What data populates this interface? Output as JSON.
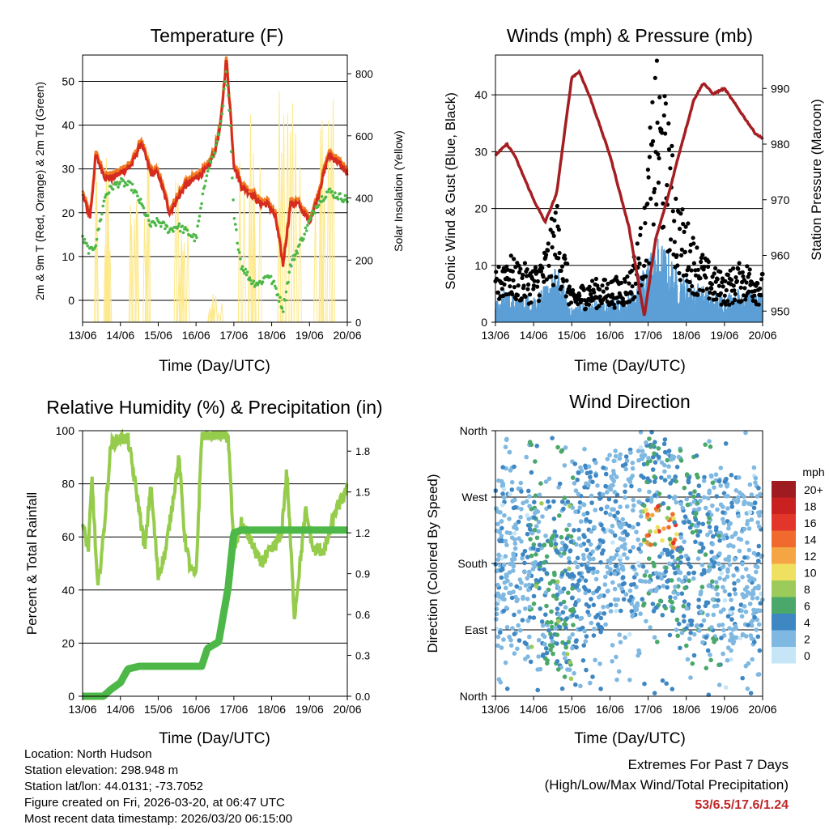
{
  "colors": {
    "red": "#d62b1f",
    "orange": "#f07c22",
    "green": "#4db848",
    "yellow": "#fde98b",
    "black": "#000000",
    "blue": "#5b9fd6",
    "maroon": "#a51e22",
    "rh": "#96cc4b",
    "precip": "#4db848"
  },
  "x_ticks": [
    "13/06",
    "14/06",
    "15/06",
    "16/06",
    "17/06",
    "18/06",
    "19/06",
    "20/06"
  ],
  "x_label": "Time (Day/UTC)",
  "panels": {
    "temperature": {
      "title": "Temperature (F)",
      "ylabel_left": "2m & 9m T (Red, Orange) & 2m Td (Green)",
      "ylabel_right": "Solar Insolation (Yellow)",
      "y_ticks": [
        "0",
        "10",
        "20",
        "30",
        "40",
        "50"
      ],
      "y2_ticks": [
        "0",
        "200",
        "400",
        "600",
        "800"
      ]
    },
    "winds": {
      "title": "Winds (mph) & Pressure (mb)",
      "ylabel_left": "Sonic Wind & Gust (Blue, Black)",
      "ylabel_right": "Station Pressure (Maroon)",
      "y_ticks": [
        "0",
        "10",
        "20",
        "30",
        "40"
      ],
      "y2_ticks": [
        "950",
        "960",
        "970",
        "980",
        "990"
      ]
    },
    "humidity": {
      "title": "Relative Humidity (%) & Precipitation (in)",
      "ylabel_left": "Percent & Total Rainfall",
      "y_ticks": [
        "0",
        "20",
        "40",
        "60",
        "80",
        "100"
      ],
      "y2_ticks": [
        "0.0",
        "0.3",
        "0.6",
        "0.9",
        "1.2",
        "1.5",
        "1.8"
      ]
    },
    "direction": {
      "title": "Wind Direction",
      "ylabel_left": "Direction (Colored By Speed)",
      "y_ticks": [
        "North",
        "East",
        "South",
        "West",
        "North"
      ],
      "legend_title": "mph",
      "legend_labels": [
        "20+",
        "18",
        "16",
        "14",
        "12",
        "10",
        "8",
        "6",
        "4",
        "2",
        "0"
      ],
      "legend_colors": [
        "#9e1b1f",
        "#c8211f",
        "#e3362a",
        "#ef6a2c",
        "#f6a545",
        "#f0e060",
        "#9ccb5b",
        "#4aa86a",
        "#3f87c3",
        "#7fb8e1",
        "#c6e6f7"
      ]
    }
  },
  "chart_data": [
    {
      "type": "line",
      "title": "Temperature (F)",
      "xlabel": "Time (Day/UTC)",
      "ylabel": "2m & 9m T (Red, Orange) & 2m Td (Green)",
      "ylim": [
        -5,
        56
      ],
      "y2label": "Solar Insolation (Yellow)",
      "y2lim": [
        0,
        860
      ],
      "x": [
        13.0,
        13.2,
        13.35,
        13.6,
        13.8,
        14.0,
        14.3,
        14.55,
        14.8,
        15.0,
        15.3,
        15.5,
        15.7,
        16.0,
        16.3,
        16.5,
        16.65,
        16.8,
        16.9,
        17.0,
        17.2,
        17.5,
        17.7,
        17.9,
        18.1,
        18.3,
        18.5,
        18.7,
        19.0,
        19.2,
        19.5,
        19.7,
        20.0
      ],
      "series": [
        {
          "name": "2m T",
          "values": [
            24,
            19,
            33,
            28,
            28,
            29,
            31,
            36,
            29,
            29,
            20,
            23,
            26,
            28,
            30,
            34,
            40,
            55,
            44,
            31,
            26,
            24,
            22,
            22,
            19,
            8,
            22,
            22,
            18,
            23,
            33,
            32,
            29
          ]
        },
        {
          "name": "2m Td",
          "values": [
            14,
            11,
            13,
            24,
            26,
            27,
            26,
            22,
            17,
            18,
            16,
            17,
            16,
            14,
            30,
            34,
            40,
            52,
            40,
            19,
            8,
            4,
            4,
            6,
            3,
            -2,
            8,
            12,
            18,
            22,
            25,
            24,
            23
          ]
        },
        {
          "name": "Solar Insolation",
          "peaks": [
            {
              "day": 13.55,
              "value": 530
            },
            {
              "day": 14.5,
              "value": 600
            },
            {
              "day": 15.5,
              "value": 500
            },
            {
              "day": 16.5,
              "value": 95
            },
            {
              "day": 17.45,
              "value": 690
            },
            {
              "day": 18.45,
              "value": 780
            },
            {
              "day": 19.45,
              "value": 720
            }
          ]
        }
      ]
    },
    {
      "type": "line",
      "title": "Winds (mph) & Pressure (mb)",
      "xlabel": "Time (Day/UTC)",
      "ylabel": "Sonic Wind & Gust (Blue, Black)",
      "ylim": [
        0,
        47
      ],
      "y2label": "Station Pressure (Maroon)",
      "y2lim": [
        948,
        996
      ],
      "x": [
        13.0,
        13.3,
        13.5,
        14.0,
        14.3,
        14.6,
        15.0,
        15.2,
        15.5,
        16.0,
        16.5,
        16.9,
        17.2,
        17.5,
        17.8,
        18.2,
        18.45,
        18.7,
        19.0,
        19.5,
        19.8,
        20.0
      ],
      "series": [
        {
          "name": "Station Pressure",
          "values": [
            978,
            980,
            978,
            970,
            966,
            971,
            992,
            993,
            988,
            978,
            965,
            949,
            963,
            970,
            978,
            988,
            991,
            989,
            990,
            985,
            982,
            981
          ]
        },
        {
          "name": "Wind",
          "values": [
            3,
            5,
            4,
            4,
            5,
            8,
            2,
            3,
            3,
            3,
            4,
            8,
            12,
            10,
            7,
            6,
            5,
            4,
            4,
            5,
            4,
            4
          ]
        },
        {
          "name": "Gust",
          "values": [
            8,
            12,
            10,
            9,
            12,
            20,
            5,
            6,
            7,
            7,
            8,
            18,
            44,
            35,
            20,
            14,
            11,
            9,
            8,
            10,
            9,
            8
          ]
        }
      ]
    },
    {
      "type": "line",
      "title": "Relative Humidity (%) & Precipitation (in)",
      "xlabel": "Time (Day/UTC)",
      "ylabel": "Percent & Total Rainfall",
      "ylim": [
        0,
        100
      ],
      "y2lim": [
        0,
        1.95
      ],
      "x": [
        13.0,
        13.15,
        13.25,
        13.4,
        13.55,
        13.75,
        14.0,
        14.2,
        14.5,
        14.65,
        14.8,
        15.0,
        15.2,
        15.35,
        15.55,
        15.7,
        15.85,
        16.0,
        16.15,
        16.3,
        16.6,
        16.85,
        17.0,
        17.2,
        17.4,
        17.7,
        18.0,
        18.25,
        18.4,
        18.6,
        18.9,
        19.1,
        19.4,
        19.7,
        20.0
      ],
      "series": [
        {
          "name": "Relative Humidity",
          "values": [
            65,
            55,
            82,
            40,
            60,
            95,
            97,
            97,
            70,
            55,
            80,
            45,
            55,
            70,
            90,
            60,
            48,
            45,
            98,
            99,
            99,
            98,
            55,
            65,
            60,
            50,
            55,
            60,
            85,
            30,
            70,
            55,
            55,
            70,
            78
          ]
        },
        {
          "name": "Total Precipitation",
          "values": [
            0,
            0,
            0,
            0,
            0,
            0.05,
            0.1,
            0.2,
            0.22,
            0.22,
            0.22,
            0.22,
            0.22,
            0.22,
            0.22,
            0.22,
            0.22,
            0.22,
            0.22,
            0.35,
            0.4,
            0.8,
            1.2,
            1.22,
            1.22,
            1.22,
            1.22,
            1.22,
            1.22,
            1.22,
            1.22,
            1.22,
            1.22,
            1.22,
            1.22
          ]
        }
      ]
    },
    {
      "type": "scatter",
      "title": "Wind Direction",
      "xlabel": "Time (Day/UTC)",
      "ylabel": "Direction (Colored By Speed)",
      "y_categories": [
        "North",
        "East",
        "South",
        "West",
        "North"
      ],
      "ylim": [
        0,
        360
      ],
      "clusters": [
        {
          "x": 13.2,
          "dir": 180,
          "speed": 3
        },
        {
          "x": 14.6,
          "dir": 150,
          "speed": 6
        },
        {
          "x": 15.5,
          "dir": 200,
          "speed": 4
        },
        {
          "x": 16.3,
          "dir": 220,
          "speed": 3
        },
        {
          "x": 17.4,
          "dir": 230,
          "speed": 14
        },
        {
          "x": 18.3,
          "dir": 190,
          "speed": 5
        },
        {
          "x": 19.5,
          "dir": 185,
          "speed": 3
        }
      ]
    }
  ],
  "info": {
    "location": "Location: North Hudson",
    "elevation": "Station elevation: 298.948 m",
    "latlon": "Station lat/lon: 44.0131; -73.7052",
    "created": "Figure created on Fri, 2026-03-20, at 06:47 UTC",
    "recent": "Most recent data timestamp: 2026/03/20 06:15:00"
  },
  "extremes": {
    "title": "Extremes For Past 7 Days",
    "subtitle": "(High/Low/Max Wind/Total Precipitation)",
    "values": "53/6.5/17.6/1.24"
  }
}
